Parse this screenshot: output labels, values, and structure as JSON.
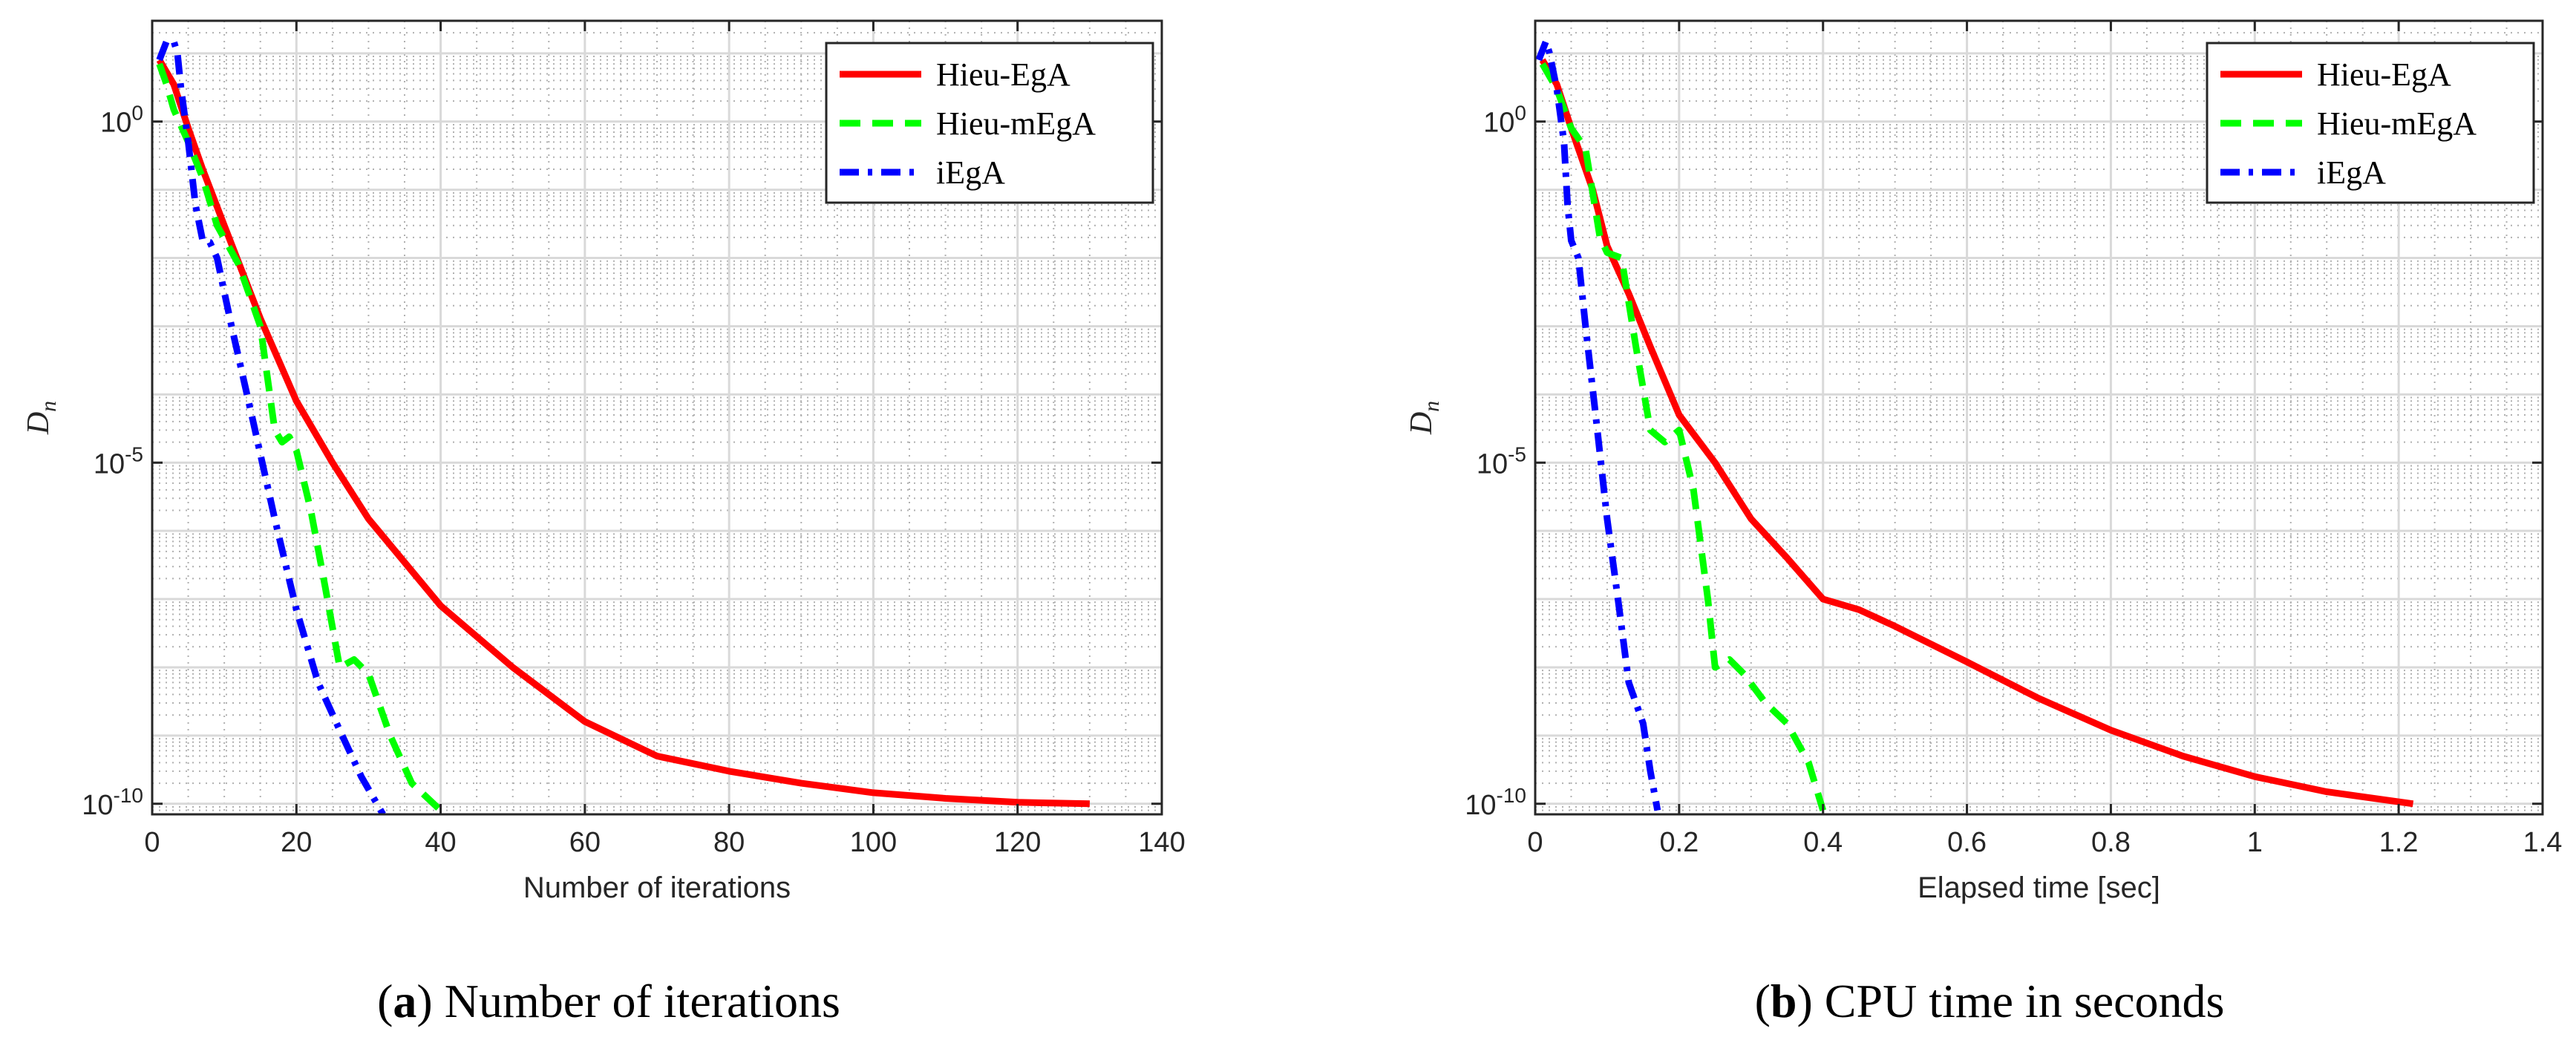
{
  "colors": {
    "hieu_ega": "#ff0000",
    "hieu_mega": "#00ff00",
    "iega": "#0000ff",
    "grid_major": "#d9d9d9",
    "grid_minor": "#b0b0b0",
    "axis": "#262626"
  },
  "chart_data": [
    {
      "type": "line",
      "yscale": "log",
      "caption_letter": "a",
      "caption_text": "Number of iterations",
      "xlabel": "Number of iterations",
      "ylabel_base": "D",
      "ylabel_sub": "n",
      "xlim": [
        0,
        140
      ],
      "ylim": [
        7e-11,
        30
      ],
      "xticks": [
        0,
        20,
        40,
        60,
        80,
        100,
        120,
        140
      ],
      "xtick_labels": [
        "0",
        "20",
        "40",
        "60",
        "80",
        "100",
        "120",
        "140"
      ],
      "yticks": [
        {
          "value": 1,
          "base": "10",
          "exp": "0"
        },
        {
          "value": 1e-05,
          "base": "10",
          "exp": "-5"
        },
        {
          "value": 1e-10,
          "base": "10",
          "exp": "-10"
        }
      ],
      "legend_position": "top-right",
      "series": [
        {
          "name": "Hieu-EgA",
          "color_key": "hieu_ega",
          "style": "solid",
          "points": [
            [
              1,
              8
            ],
            [
              3,
              3.5
            ],
            [
              5,
              0.8
            ],
            [
              7,
              0.2
            ],
            [
              10,
              0.03
            ],
            [
              15,
              0.0013
            ],
            [
              20,
              8e-05
            ],
            [
              25,
              1e-05
            ],
            [
              30,
              1.5e-06
            ],
            [
              40,
              8e-08
            ],
            [
              50,
              1e-08
            ],
            [
              60,
              1.6e-09
            ],
            [
              70,
              5e-10
            ],
            [
              80,
              3e-10
            ],
            [
              90,
              2e-10
            ],
            [
              100,
              1.45e-10
            ],
            [
              110,
              1.2e-10
            ],
            [
              120,
              1.05e-10
            ],
            [
              130,
              1e-10
            ]
          ]
        },
        {
          "name": "Hieu-mEgA",
          "color_key": "hieu_mega",
          "style": "dashed",
          "points": [
            [
              1,
              7
            ],
            [
              2,
              3.5
            ],
            [
              3,
              1.5
            ],
            [
              5,
              0.5
            ],
            [
              7,
              0.15
            ],
            [
              9,
              0.03
            ],
            [
              12,
              0.008
            ],
            [
              15,
              0.001
            ],
            [
              17,
              3e-05
            ],
            [
              18,
              2e-05
            ],
            [
              19,
              2.4e-05
            ],
            [
              20,
              1.5e-05
            ],
            [
              22,
              2e-06
            ],
            [
              24,
              1.5e-07
            ],
            [
              26,
              1e-08
            ],
            [
              28,
              1.3e-08
            ],
            [
              30,
              8e-09
            ],
            [
              33,
              1e-09
            ],
            [
              36,
              2e-10
            ],
            [
              40,
              8e-11
            ]
          ]
        },
        {
          "name": "iEgA",
          "color_key": "iega",
          "style": "dashdot",
          "points": [
            [
              1,
              8
            ],
            [
              2,
              15
            ],
            [
              3,
              15
            ],
            [
              3.5,
              10
            ],
            [
              4,
              3
            ],
            [
              5,
              0.5
            ],
            [
              6,
              0.06
            ],
            [
              7,
              0.018
            ],
            [
              8,
              0.017
            ],
            [
              9,
              0.01
            ],
            [
              11,
              0.001
            ],
            [
              14,
              4e-05
            ],
            [
              17,
              1.5e-06
            ],
            [
              20,
              7e-08
            ],
            [
              23,
              6e-09
            ],
            [
              26,
              1.2e-09
            ],
            [
              29,
              2.5e-10
            ],
            [
              32,
              7e-11
            ]
          ]
        }
      ]
    },
    {
      "type": "line",
      "yscale": "log",
      "caption_letter": "b",
      "caption_text": "CPU time in seconds",
      "xlabel": "Elapsed time [sec]",
      "ylabel_base": "D",
      "ylabel_sub": "n",
      "xlim": [
        0,
        1.4
      ],
      "ylim": [
        7e-11,
        30
      ],
      "xticks": [
        0,
        0.2,
        0.4,
        0.6,
        0.8,
        1.0,
        1.2,
        1.4
      ],
      "xtick_labels": [
        "0",
        "0.2",
        "0.4",
        "0.6",
        "0.8",
        "1",
        "1.2",
        "1.4"
      ],
      "yticks": [
        {
          "value": 1,
          "base": "10",
          "exp": "0"
        },
        {
          "value": 1e-05,
          "base": "10",
          "exp": "-5"
        },
        {
          "value": 1e-10,
          "base": "10",
          "exp": "-10"
        }
      ],
      "legend_position": "top-right",
      "series": [
        {
          "name": "Hieu-EgA",
          "color_key": "hieu_ega",
          "style": "solid",
          "points": [
            [
              0.01,
              8
            ],
            [
              0.03,
              3.5
            ],
            [
              0.05,
              0.8
            ],
            [
              0.08,
              0.1
            ],
            [
              0.1,
              0.015
            ],
            [
              0.13,
              0.003
            ],
            [
              0.16,
              0.0005
            ],
            [
              0.2,
              5e-05
            ],
            [
              0.25,
              1e-05
            ],
            [
              0.3,
              1.5e-06
            ],
            [
              0.35,
              4e-07
            ],
            [
              0.4,
              1e-07
            ],
            [
              0.45,
              7e-08
            ],
            [
              0.5,
              4e-08
            ],
            [
              0.6,
              1.2e-08
            ],
            [
              0.7,
              3.5e-09
            ],
            [
              0.8,
              1.2e-09
            ],
            [
              0.9,
              5e-10
            ],
            [
              1.0,
              2.5e-10
            ],
            [
              1.1,
              1.5e-10
            ],
            [
              1.22,
              1e-10
            ]
          ]
        },
        {
          "name": "Hieu-mEgA",
          "color_key": "hieu_mega",
          "style": "dashed",
          "points": [
            [
              0.01,
              7
            ],
            [
              0.03,
              3
            ],
            [
              0.05,
              0.8
            ],
            [
              0.07,
              0.4
            ],
            [
              0.09,
              0.02
            ],
            [
              0.1,
              0.012
            ],
            [
              0.12,
              0.01
            ],
            [
              0.14,
              0.0005
            ],
            [
              0.16,
              3e-05
            ],
            [
              0.18,
              2e-05
            ],
            [
              0.2,
              3e-05
            ],
            [
              0.22,
              4e-06
            ],
            [
              0.24,
              1e-07
            ],
            [
              0.25,
              1e-08
            ],
            [
              0.27,
              1.3e-08
            ],
            [
              0.29,
              8e-09
            ],
            [
              0.32,
              3e-09
            ],
            [
              0.35,
              1.5e-09
            ],
            [
              0.38,
              4e-10
            ],
            [
              0.4,
              8e-11
            ]
          ]
        },
        {
          "name": "iEgA",
          "color_key": "iega",
          "style": "dashdot",
          "points": [
            [
              0.005,
              8
            ],
            [
              0.015,
              15
            ],
            [
              0.02,
              10
            ],
            [
              0.03,
              3
            ],
            [
              0.04,
              0.5
            ],
            [
              0.045,
              0.06
            ],
            [
              0.05,
              0.018
            ],
            [
              0.06,
              0.01
            ],
            [
              0.07,
              0.001
            ],
            [
              0.085,
              4e-05
            ],
            [
              0.1,
              1.5e-06
            ],
            [
              0.115,
              1e-07
            ],
            [
              0.13,
              6e-09
            ],
            [
              0.15,
              1.5e-09
            ],
            [
              0.16,
              3e-10
            ],
            [
              0.17,
              8e-11
            ]
          ]
        }
      ]
    }
  ]
}
